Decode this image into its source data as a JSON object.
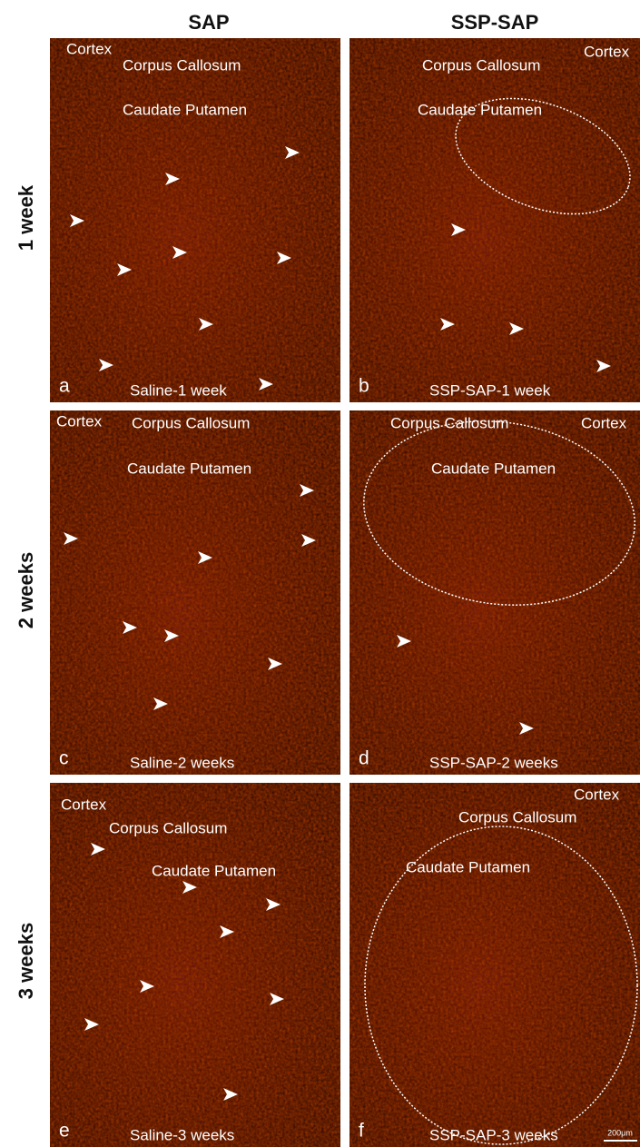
{
  "columns": [
    "SAP",
    "SSP-SAP"
  ],
  "rows": [
    "1 week",
    "2 weeks",
    "3 weeks"
  ],
  "panels": [
    {
      "letter": "a",
      "caption": "Saline-1 week",
      "labels": [
        "Cortex",
        "Corpus Callosum",
        "Caudate Putamen"
      ]
    },
    {
      "letter": "b",
      "caption": "SSP-SAP-1 week",
      "labels": [
        "Corpus Callosum",
        "Cortex",
        "Caudate Putamen"
      ]
    },
    {
      "letter": "c",
      "caption": "Saline-2 weeks",
      "labels": [
        "Cortex",
        "Corpus Callosum",
        "Caudate Putamen"
      ]
    },
    {
      "letter": "d",
      "caption": "SSP-SAP-2 weeks",
      "labels": [
        "Corpus Callosum",
        "Cortex",
        "Caudate Putamen"
      ]
    },
    {
      "letter": "e",
      "caption": "Saline-3 weeks",
      "labels": [
        "Cortex",
        "Corpus Callosum",
        "Caudate Putamen"
      ]
    },
    {
      "letter": "f",
      "caption": "SSP-SAP-3 weeks",
      "labels": [
        "Cortex",
        "Corpus Callosum",
        "Caudate Putamen"
      ],
      "scale_bar": "200μm"
    }
  ]
}
